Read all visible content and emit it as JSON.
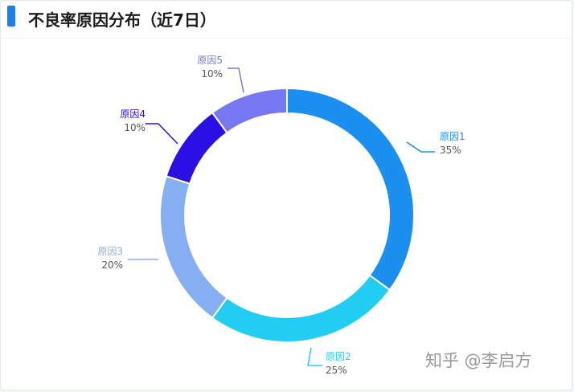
{
  "header": {
    "title": "不良率原因分布（近7日）"
  },
  "chart_data": {
    "type": "pie",
    "style": "donut",
    "title": "不良率原因分布（近7日）",
    "categories": [
      "原因1",
      "原因2",
      "原因3",
      "原因4",
      "原因5"
    ],
    "values": [
      35,
      25,
      20,
      10,
      10
    ],
    "value_labels": [
      "35%",
      "25%",
      "20%",
      "10%",
      "10%"
    ],
    "colors": [
      "#1a8ff0",
      "#22cdf4",
      "#86aef2",
      "#2b10e6",
      "#7677f2"
    ],
    "legend": "none",
    "label_placement": "outside-with-leader-lines"
  },
  "colors": {
    "accent": "#1a7ff0"
  },
  "watermark": {
    "text": "知乎 @李启方"
  }
}
